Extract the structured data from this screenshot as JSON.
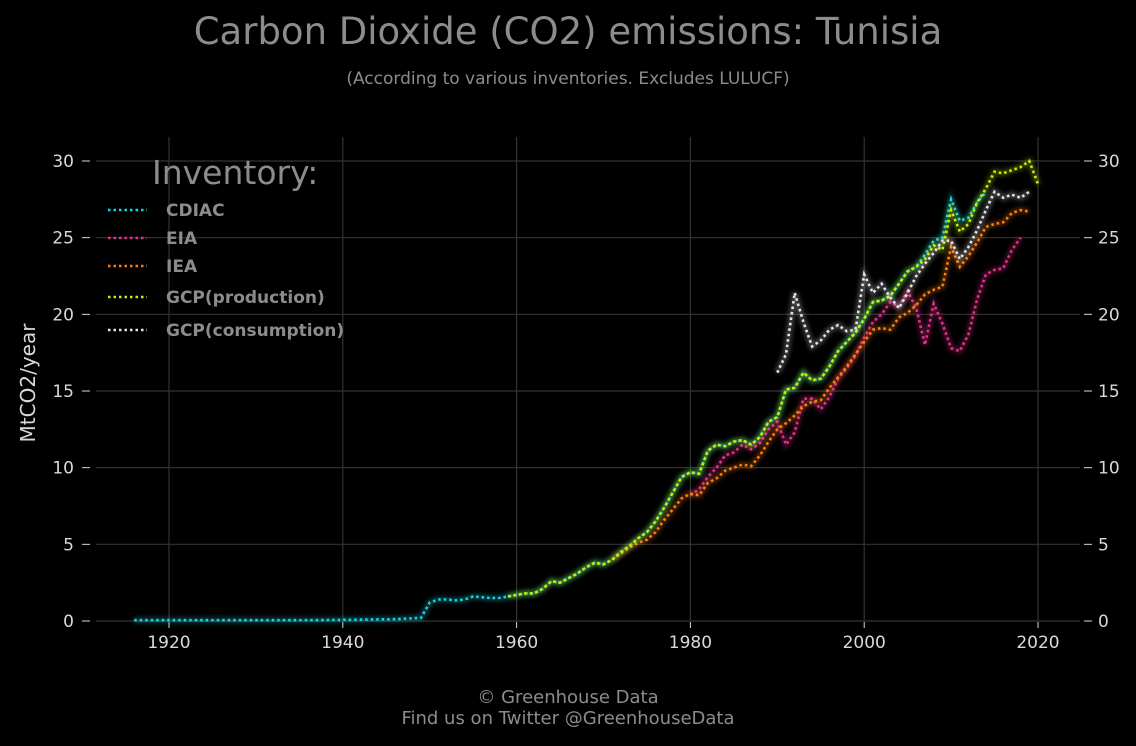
{
  "header": {
    "title": "Carbon Dioxide (CO2) emissions: Tunisia",
    "subtitle": "(According to various inventories. Excludes LULUCF)"
  },
  "footer": {
    "line1": "© Greenhouse Data",
    "line2": "Find us on Twitter @GreenhouseData"
  },
  "chart_data": {
    "type": "line",
    "title": "Carbon Dioxide (CO2) emissions: Tunisia",
    "subtitle": "(According to various inventories. Excludes LULUCF)",
    "ylabel": "MtCO2/year",
    "xlabel": "",
    "xlim": [
      1911,
      2025
    ],
    "ylim": [
      0,
      31.5
    ],
    "xticks": [
      1920,
      1940,
      1960,
      1980,
      2000,
      2020
    ],
    "yticks": [
      0,
      5,
      10,
      15,
      20,
      25,
      30
    ],
    "grid": true,
    "background": "#000000",
    "legend": {
      "title": "Inventory:",
      "position": "top-left"
    },
    "series": [
      {
        "name": "CDIAC",
        "color": "#17d6e6",
        "points": [
          [
            1916,
            0.05
          ],
          [
            1920,
            0.05
          ],
          [
            1925,
            0.05
          ],
          [
            1930,
            0.05
          ],
          [
            1935,
            0.05
          ],
          [
            1940,
            0.07
          ],
          [
            1943,
            0.1
          ],
          [
            1946,
            0.12
          ],
          [
            1949,
            0.2
          ],
          [
            1950,
            1.2
          ],
          [
            1951,
            1.4
          ],
          [
            1952,
            1.4
          ],
          [
            1953,
            1.35
          ],
          [
            1954,
            1.4
          ],
          [
            1955,
            1.6
          ],
          [
            1956,
            1.55
          ],
          [
            1957,
            1.5
          ],
          [
            1958,
            1.5
          ],
          [
            1959,
            1.6
          ],
          [
            1960,
            1.7
          ],
          [
            1961,
            1.8
          ],
          [
            1962,
            1.8
          ],
          [
            1963,
            2.1
          ],
          [
            1964,
            2.6
          ],
          [
            1965,
            2.5
          ],
          [
            1966,
            2.8
          ],
          [
            1967,
            3.1
          ],
          [
            1968,
            3.5
          ],
          [
            1969,
            3.8
          ],
          [
            1970,
            3.7
          ],
          [
            1971,
            4.0
          ],
          [
            1972,
            4.5
          ],
          [
            1973,
            4.9
          ],
          [
            1974,
            5.4
          ],
          [
            1975,
            5.8
          ],
          [
            1976,
            6.5
          ],
          [
            1977,
            7.4
          ],
          [
            1978,
            8.4
          ],
          [
            1979,
            9.4
          ],
          [
            1980,
            9.7
          ],
          [
            1981,
            9.6
          ],
          [
            1982,
            11.1
          ],
          [
            1983,
            11.5
          ],
          [
            1984,
            11.4
          ],
          [
            1985,
            11.7
          ],
          [
            1986,
            11.8
          ],
          [
            1987,
            11.5
          ],
          [
            1988,
            12.0
          ],
          [
            1989,
            13.0
          ],
          [
            1990,
            13.3
          ],
          [
            1991,
            15.1
          ],
          [
            1992,
            15.2
          ],
          [
            1993,
            16.2
          ],
          [
            1994,
            15.7
          ],
          [
            1995,
            15.8
          ],
          [
            1996,
            16.6
          ],
          [
            1997,
            17.6
          ],
          [
            1998,
            18.2
          ],
          [
            1999,
            18.8
          ],
          [
            2000,
            19.7
          ],
          [
            2001,
            20.8
          ],
          [
            2002,
            20.9
          ],
          [
            2003,
            21.2
          ],
          [
            2004,
            22.0
          ],
          [
            2005,
            22.8
          ],
          [
            2006,
            23.1
          ],
          [
            2007,
            23.9
          ],
          [
            2008,
            24.8
          ],
          [
            2009,
            25.0
          ],
          [
            2010,
            27.5
          ],
          [
            2011,
            26.1
          ],
          [
            2012,
            26.3
          ],
          [
            2013,
            27.3
          ],
          [
            2014,
            28.0
          ]
        ]
      },
      {
        "name": "EIA",
        "color": "#e6318c",
        "points": [
          [
            1980,
            8.2
          ],
          [
            1981,
            8.6
          ],
          [
            1982,
            9.4
          ],
          [
            1983,
            10.0
          ],
          [
            1984,
            10.8
          ],
          [
            1985,
            11.0
          ],
          [
            1986,
            11.5
          ],
          [
            1987,
            11.2
          ],
          [
            1988,
            11.6
          ],
          [
            1989,
            12.5
          ],
          [
            1990,
            13.0
          ],
          [
            1991,
            11.5
          ],
          [
            1992,
            12.3
          ],
          [
            1993,
            14.5
          ],
          [
            1994,
            14.5
          ],
          [
            1995,
            13.8
          ],
          [
            1996,
            14.6
          ],
          [
            1997,
            15.8
          ],
          [
            1998,
            16.5
          ],
          [
            1999,
            17.3
          ],
          [
            2000,
            18.5
          ],
          [
            2001,
            19.5
          ],
          [
            2002,
            20.0
          ],
          [
            2003,
            20.8
          ],
          [
            2004,
            20.5
          ],
          [
            2005,
            21.5
          ],
          [
            2006,
            20.4
          ],
          [
            2007,
            18.0
          ],
          [
            2008,
            20.7
          ],
          [
            2009,
            19.4
          ],
          [
            2010,
            17.8
          ],
          [
            2011,
            17.6
          ],
          [
            2012,
            18.7
          ],
          [
            2013,
            21.0
          ],
          [
            2014,
            22.6
          ],
          [
            2015,
            22.9
          ],
          [
            2016,
            23.0
          ],
          [
            2017,
            24.2
          ],
          [
            2018,
            25.0
          ]
        ]
      },
      {
        "name": "IEA",
        "color": "#ff7f0e",
        "points": [
          [
            1971,
            4.0
          ],
          [
            1972,
            4.4
          ],
          [
            1973,
            4.8
          ],
          [
            1974,
            5.1
          ],
          [
            1975,
            5.3
          ],
          [
            1976,
            5.8
          ],
          [
            1977,
            6.6
          ],
          [
            1978,
            7.3
          ],
          [
            1979,
            8.0
          ],
          [
            1980,
            8.3
          ],
          [
            1981,
            8.2
          ],
          [
            1982,
            9.0
          ],
          [
            1983,
            9.3
          ],
          [
            1984,
            9.8
          ],
          [
            1985,
            10.0
          ],
          [
            1986,
            10.2
          ],
          [
            1987,
            10.1
          ],
          [
            1988,
            10.8
          ],
          [
            1989,
            11.7
          ],
          [
            1990,
            12.5
          ],
          [
            1991,
            12.9
          ],
          [
            1992,
            13.4
          ],
          [
            1993,
            14.0
          ],
          [
            1994,
            14.3
          ],
          [
            1995,
            14.4
          ],
          [
            1996,
            15.2
          ],
          [
            1997,
            15.9
          ],
          [
            1998,
            16.6
          ],
          [
            1999,
            17.4
          ],
          [
            2000,
            18.2
          ],
          [
            2001,
            19.0
          ],
          [
            2002,
            19.1
          ],
          [
            2003,
            19.0
          ],
          [
            2004,
            19.8
          ],
          [
            2005,
            20.1
          ],
          [
            2006,
            20.6
          ],
          [
            2007,
            21.3
          ],
          [
            2008,
            21.6
          ],
          [
            2009,
            21.8
          ],
          [
            2010,
            24.4
          ],
          [
            2011,
            23.1
          ],
          [
            2012,
            23.8
          ],
          [
            2013,
            24.7
          ],
          [
            2014,
            25.7
          ],
          [
            2015,
            25.9
          ],
          [
            2016,
            26.0
          ],
          [
            2017,
            26.6
          ],
          [
            2018,
            26.8
          ],
          [
            2019,
            26.7
          ]
        ]
      },
      {
        "name": "GCP(production)",
        "color": "#c7f000",
        "points": [
          [
            1959,
            1.6
          ],
          [
            1960,
            1.7
          ],
          [
            1961,
            1.8
          ],
          [
            1962,
            1.8
          ],
          [
            1963,
            2.1
          ],
          [
            1964,
            2.6
          ],
          [
            1965,
            2.5
          ],
          [
            1966,
            2.8
          ],
          [
            1967,
            3.1
          ],
          [
            1968,
            3.5
          ],
          [
            1969,
            3.8
          ],
          [
            1970,
            3.7
          ],
          [
            1971,
            4.0
          ],
          [
            1972,
            4.5
          ],
          [
            1973,
            4.9
          ],
          [
            1974,
            5.4
          ],
          [
            1975,
            5.8
          ],
          [
            1976,
            6.5
          ],
          [
            1977,
            7.4
          ],
          [
            1978,
            8.4
          ],
          [
            1979,
            9.4
          ],
          [
            1980,
            9.7
          ],
          [
            1981,
            9.6
          ],
          [
            1982,
            11.1
          ],
          [
            1983,
            11.5
          ],
          [
            1984,
            11.4
          ],
          [
            1985,
            11.7
          ],
          [
            1986,
            11.8
          ],
          [
            1987,
            11.5
          ],
          [
            1988,
            12.0
          ],
          [
            1989,
            13.0
          ],
          [
            1990,
            13.3
          ],
          [
            1991,
            15.1
          ],
          [
            1992,
            15.2
          ],
          [
            1993,
            16.2
          ],
          [
            1994,
            15.7
          ],
          [
            1995,
            15.8
          ],
          [
            1996,
            16.6
          ],
          [
            1997,
            17.6
          ],
          [
            1998,
            18.2
          ],
          [
            1999,
            18.8
          ],
          [
            2000,
            19.7
          ],
          [
            2001,
            20.8
          ],
          [
            2002,
            20.9
          ],
          [
            2003,
            21.2
          ],
          [
            2004,
            22.0
          ],
          [
            2005,
            22.8
          ],
          [
            2006,
            23.1
          ],
          [
            2007,
            23.6
          ],
          [
            2008,
            24.5
          ],
          [
            2009,
            24.2
          ],
          [
            2010,
            26.8
          ],
          [
            2011,
            25.4
          ],
          [
            2012,
            25.9
          ],
          [
            2013,
            27.3
          ],
          [
            2014,
            28.2
          ],
          [
            2015,
            29.3
          ],
          [
            2016,
            29.2
          ],
          [
            2017,
            29.4
          ],
          [
            2018,
            29.6
          ],
          [
            2019,
            30.0
          ],
          [
            2020,
            28.5
          ]
        ]
      },
      {
        "name": "GCP(consumption)",
        "color": "#e6e6e6",
        "points": [
          [
            1990,
            16.2
          ],
          [
            1991,
            17.4
          ],
          [
            1992,
            21.4
          ],
          [
            1993,
            19.5
          ],
          [
            1994,
            17.9
          ],
          [
            1995,
            18.3
          ],
          [
            1996,
            19.0
          ],
          [
            1997,
            19.3
          ],
          [
            1998,
            18.9
          ],
          [
            1999,
            19.0
          ],
          [
            2000,
            22.6
          ],
          [
            2001,
            21.4
          ],
          [
            2002,
            22.0
          ],
          [
            2003,
            21.1
          ],
          [
            2004,
            20.4
          ],
          [
            2005,
            21.4
          ],
          [
            2006,
            22.5
          ],
          [
            2007,
            23.3
          ],
          [
            2008,
            24.0
          ],
          [
            2009,
            24.8
          ],
          [
            2010,
            24.8
          ],
          [
            2011,
            23.6
          ],
          [
            2012,
            24.4
          ],
          [
            2013,
            25.5
          ],
          [
            2014,
            26.8
          ],
          [
            2015,
            28.0
          ],
          [
            2016,
            27.6
          ],
          [
            2017,
            27.8
          ],
          [
            2018,
            27.6
          ],
          [
            2019,
            28.0
          ]
        ]
      }
    ]
  }
}
